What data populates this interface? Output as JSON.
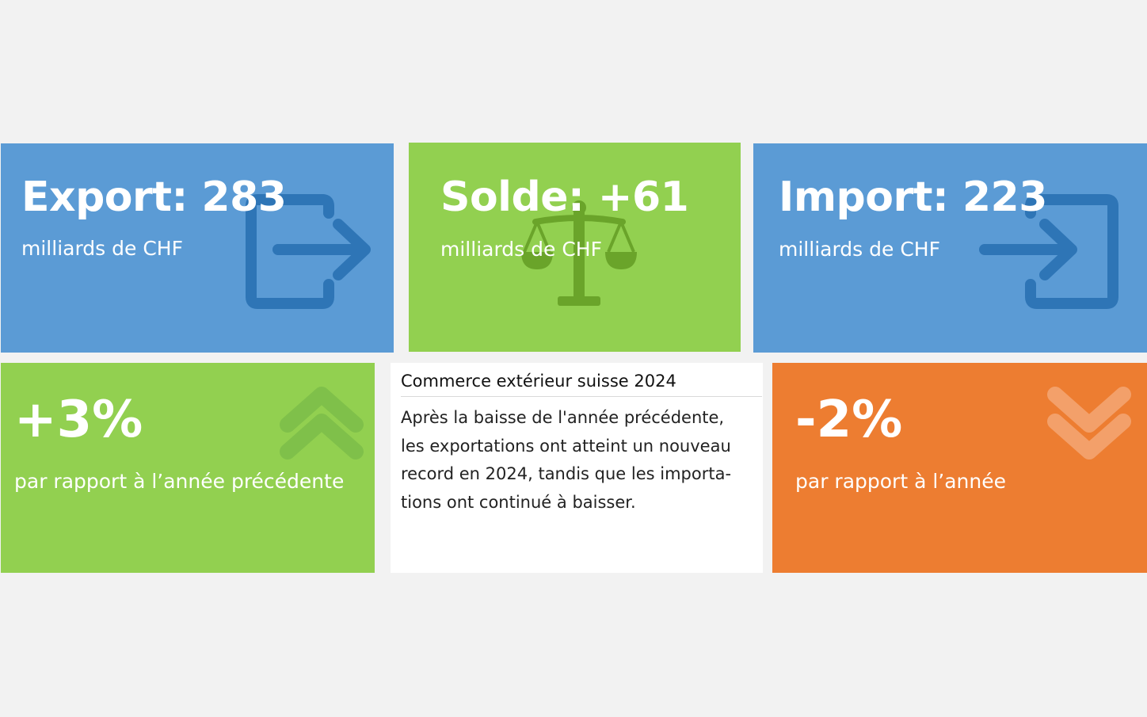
{
  "colors": {
    "blue": "#5b9bd5",
    "green": "#92d050",
    "orange": "#ed7d31",
    "background": "#f2f2f2"
  },
  "export": {
    "headline": "Export: 283",
    "unit": "milliards de CHF",
    "icon": "exit-arrow-icon"
  },
  "balance": {
    "headline": "Solde: +61",
    "unit": "milliards de CHF",
    "icon": "scales-icon"
  },
  "import": {
    "headline": "Import: 223",
    "unit": "milliards de CHF",
    "icon": "enter-arrow-icon"
  },
  "export_change": {
    "value": "+3%",
    "caption": "par rapport à l’année précédente",
    "icon": "double-chevron-up-icon"
  },
  "summary": {
    "title": "Commerce extérieur suisse 2024",
    "lines": [
      "Après la baisse de l'année précédente,",
      "les exportations ont atteint un nouveau",
      "record en 2024, tandis que les importa-",
      "tions ont continué à baisser."
    ]
  },
  "import_change": {
    "value": "-2%",
    "caption": "par rapport à l’année",
    "icon": "double-chevron-down-icon"
  }
}
